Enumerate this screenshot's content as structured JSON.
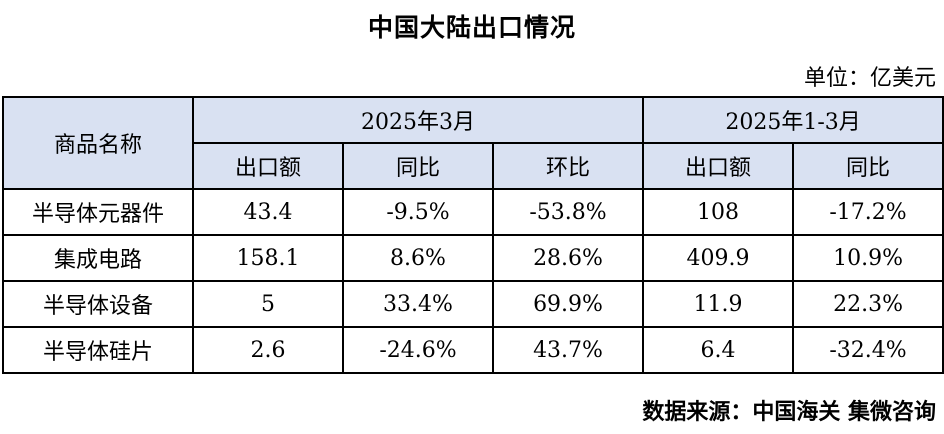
{
  "title": "中国大陆出口情况",
  "unit": "单位：亿美元",
  "table": {
    "name_header": "商品名称",
    "group1_header": "2025年3月",
    "group2_header": "2025年1-3月",
    "sub_headers": [
      "出口额",
      "同比",
      "环比",
      "出口额",
      "同比"
    ],
    "rows": [
      {
        "name": "半导体元器件",
        "cells": [
          "43.4",
          "-9.5%",
          "-53.8%",
          "108",
          "-17.2%"
        ]
      },
      {
        "name": "集成电路",
        "cells": [
          "158.1",
          "8.6%",
          "28.6%",
          "409.9",
          "10.9%"
        ]
      },
      {
        "name": "半导体设备",
        "cells": [
          "5",
          "33.4%",
          "69.9%",
          "11.9",
          "22.3%"
        ]
      },
      {
        "name": "半导体硅片",
        "cells": [
          "2.6",
          "-24.6%",
          "43.7%",
          "6.4",
          "-32.4%"
        ]
      }
    ]
  },
  "source": "数据来源：中国海关 集微咨询"
}
